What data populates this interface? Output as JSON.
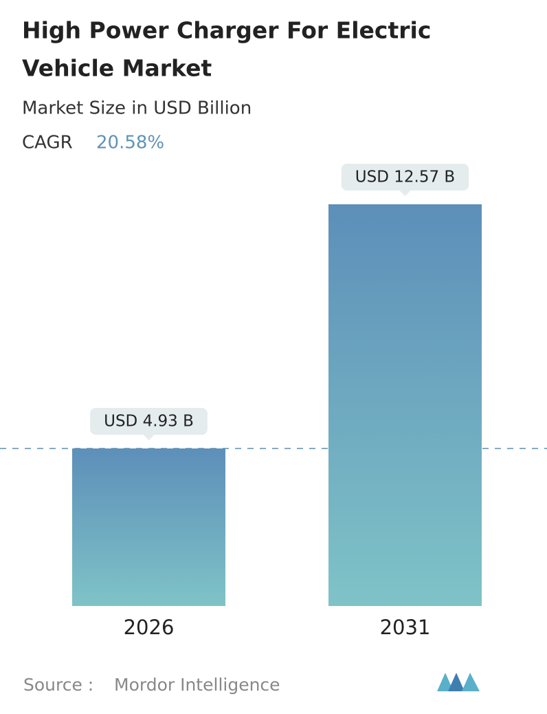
{
  "chart_data": {
    "type": "bar",
    "title_lines": [
      "High Power Charger For Electric",
      "Vehicle Market"
    ],
    "subtitle": "Market Size in USD Billion",
    "cagr_label": "CAGR",
    "cagr": "20.58%",
    "categories": [
      "2026",
      "2031"
    ],
    "values": [
      4.93,
      12.57
    ],
    "value_labels": [
      "USD 4.93 B",
      "USD 12.57 B"
    ],
    "source_label": "Source :",
    "source": "Mordor Intelligence"
  }
}
